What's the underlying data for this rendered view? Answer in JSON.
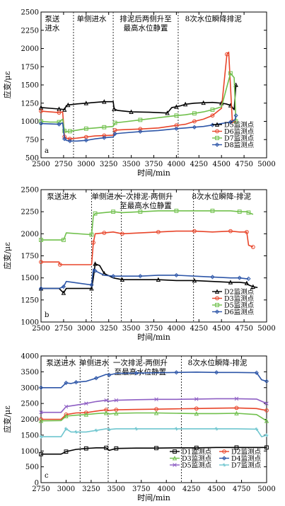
{
  "chart_data": [
    {
      "type": "line",
      "panel": "a",
      "xlabel": "时间/min",
      "ylabel": "应变/με",
      "xlim": [
        2500,
        5000
      ],
      "ylim": [
        500,
        2500
      ],
      "xticks": [
        2500,
        2750,
        3000,
        3250,
        3500,
        3750,
        4000,
        4250,
        4500,
        4750,
        5000
      ],
      "yticks": [
        500,
        750,
        1000,
        1250,
        1500,
        1750,
        2000,
        2250,
        2500
      ],
      "phase_lines": [
        2860,
        3300,
        4020
      ],
      "phases": [
        {
          "lines": [
            "泵送",
            "进水"
          ],
          "x": 2625
        },
        {
          "lines": [
            "单侧进水"
          ],
          "x": 3060
        },
        {
          "lines": [
            "排泥后两侧升至",
            "最高水位静置"
          ],
          "x": 3660
        },
        {
          "lines": [
            "8次水位瞬降排泥"
          ],
          "x": 4410
        }
      ],
      "legend_position": "bottom-right",
      "legend_columns": 1,
      "series": [
        {
          "name": "D5监测点",
          "color": "#000000",
          "marker": "triangle",
          "x": [
            2500,
            2600,
            2700,
            2740,
            2760,
            2780,
            2800,
            2900,
            3000,
            3100,
            3200,
            3300,
            3310,
            3350,
            3500,
            3700,
            3900,
            3950,
            4000,
            4050,
            4100,
            4200,
            4300,
            4400,
            4500,
            4550,
            4600,
            4640,
            4660
          ],
          "y": [
            1190,
            1180,
            1170,
            1165,
            1160,
            1215,
            1225,
            1240,
            1250,
            1260,
            1270,
            1270,
            1170,
            1150,
            1130,
            1125,
            1115,
            1190,
            1200,
            1215,
            1235,
            1250,
            1255,
            1260,
            1250,
            1240,
            1220,
            1160,
            1500
          ]
        },
        {
          "name": "D6监测点",
          "color": "#e8452a",
          "marker": "circle",
          "x": [
            2500,
            2600,
            2700,
            2740,
            2760,
            2780,
            2820,
            2900,
            3000,
            3100,
            3200,
            3300,
            3320,
            3400,
            3600,
            3800,
            4000,
            4100,
            4200,
            4300,
            4400,
            4500,
            4560,
            4580,
            4620,
            4660
          ],
          "y": [
            1140,
            1130,
            1120,
            1130,
            790,
            770,
            760,
            770,
            785,
            800,
            805,
            810,
            880,
            885,
            895,
            910,
            945,
            960,
            1000,
            1030,
            1080,
            1180,
            1920,
            1950,
            1000,
            1000
          ]
        },
        {
          "name": "D7监测点",
          "color": "#70c04c",
          "marker": "square",
          "x": [
            2500,
            2600,
            2700,
            2740,
            2760,
            2780,
            2820,
            2900,
            3000,
            3100,
            3200,
            3300,
            3320,
            3400,
            3600,
            3800,
            4000,
            4100,
            4200,
            4300,
            4400,
            4500,
            4600,
            4640,
            4660
          ],
          "y": [
            1000,
            990,
            990,
            1030,
            870,
            860,
            865,
            880,
            900,
            910,
            920,
            930,
            980,
            990,
            1020,
            1050,
            1080,
            1090,
            1110,
            1130,
            1160,
            1200,
            1660,
            1600,
            1000
          ]
        },
        {
          "name": "D8监测点",
          "color": "#2d56a8",
          "marker": "diamond",
          "x": [
            2500,
            2600,
            2700,
            2740,
            2760,
            2780,
            2820,
            2900,
            3000,
            3100,
            3200,
            3300,
            3320,
            3400,
            3600,
            3800,
            4000,
            4100,
            4200,
            4300,
            4400,
            4500,
            4600,
            4650,
            4660
          ],
          "y": [
            970,
            965,
            960,
            980,
            760,
            740,
            730,
            730,
            740,
            760,
            775,
            785,
            830,
            840,
            860,
            875,
            900,
            910,
            920,
            930,
            950,
            970,
            990,
            1020,
            1080
          ]
        }
      ]
    },
    {
      "type": "line",
      "panel": "b",
      "xlabel": "时间/min",
      "ylabel": "应变/με",
      "xlim": [
        2500,
        5000
      ],
      "ylim": [
        1000,
        2500
      ],
      "xticks": [
        2500,
        2750,
        3000,
        3250,
        3500,
        3750,
        4000,
        4250,
        4500,
        4750,
        5000
      ],
      "yticks": [
        1000,
        1250,
        1500,
        1750,
        2000,
        2250,
        2500
      ],
      "phase_lines": [
        3060,
        3390,
        4190
      ],
      "phases": [
        {
          "lines": [
            "泵送进水"
          ],
          "x": 2730
        },
        {
          "lines": [
            "单侧进水"
          ],
          "x": 3225
        },
        {
          "lines": [
            "一次排泥-两侧升",
            "至最高水位静置"
          ],
          "x": 3660
        },
        {
          "lines": [
            "8次水位瞬降-排泥"
          ],
          "x": 4500
        }
      ],
      "legend_position": "bottom-right",
      "legend_columns": 1,
      "series": [
        {
          "name": "D2监测点",
          "color": "#000000",
          "marker": "triangle",
          "x": [
            2500,
            2700,
            2750,
            2780,
            3060,
            3080,
            3100,
            3150,
            3200,
            3300,
            3400,
            3600,
            3800,
            4000,
            4200,
            4400,
            4600,
            4700,
            4780,
            4800,
            4850,
            4900
          ],
          "y": [
            1380,
            1380,
            1330,
            1380,
            1380,
            1500,
            1660,
            1640,
            1550,
            1500,
            1480,
            1480,
            1480,
            1470,
            1470,
            1460,
            1450,
            1450,
            1440,
            1420,
            1400,
            1390
          ]
        },
        {
          "name": "D3监测点",
          "color": "#e8452a",
          "marker": "circle",
          "x": [
            2500,
            2700,
            2710,
            3060,
            3080,
            3100,
            3200,
            3300,
            3400,
            3600,
            3800,
            4000,
            4200,
            4400,
            4600,
            4700,
            4780,
            4800,
            4850
          ],
          "y": [
            1680,
            1680,
            1650,
            1650,
            1900,
            2000,
            2010,
            2020,
            2000,
            2010,
            2020,
            2030,
            2030,
            2020,
            2030,
            2020,
            2020,
            1870,
            1850
          ]
        },
        {
          "name": "D5监测点",
          "color": "#70c04c",
          "marker": "square",
          "x": [
            2500,
            2700,
            2750,
            2780,
            3060,
            3080,
            3100,
            3200,
            3300,
            3400,
            3600,
            3800,
            4000,
            4200,
            4400,
            4600,
            4700,
            4780,
            4800,
            4850
          ],
          "y": [
            1930,
            1930,
            1930,
            2010,
            1990,
            2200,
            2230,
            2240,
            2250,
            2240,
            2250,
            2260,
            2260,
            2260,
            2260,
            2260,
            2250,
            2250,
            2240,
            2220
          ]
        },
        {
          "name": "D6监测点",
          "color": "#2d56a8",
          "marker": "diamond",
          "x": [
            2500,
            2700,
            2750,
            2780,
            3060,
            3080,
            3100,
            3200,
            3300,
            3400,
            3600,
            3800,
            4000,
            4200,
            4400,
            4600,
            4700,
            4780,
            4800
          ],
          "y": [
            1380,
            1380,
            1400,
            1460,
            1420,
            1600,
            1580,
            1530,
            1520,
            1520,
            1520,
            1530,
            1530,
            1520,
            1510,
            1500,
            1500,
            1490,
            1490
          ]
        }
      ]
    },
    {
      "type": "line",
      "panel": "c",
      "xlabel": "时间/min",
      "ylabel": "应变/με",
      "xlim": [
        2750,
        5000
      ],
      "ylim": [
        0,
        4000
      ],
      "xticks": [
        2750,
        3000,
        3250,
        3500,
        3750,
        4000,
        4250,
        4500,
        4750,
        5000
      ],
      "yticks": [
        0,
        500,
        1000,
        1500,
        2000,
        2500,
        3000,
        3500,
        4000
      ],
      "phase_lines": [
        3140,
        3420,
        4150
      ],
      "phases": [
        {
          "lines": [
            "泵送进水"
          ],
          "x": 2950
        },
        {
          "lines": [
            "单侧进水"
          ],
          "x": 3280
        },
        {
          "lines": [
            "一次排泥-两侧升",
            "至最高水位静置"
          ],
          "x": 3740
        },
        {
          "lines": [
            "8次水位瞬降-排泥"
          ],
          "x": 4510
        }
      ],
      "legend_position": "bottom",
      "legend_columns": 2,
      "series": [
        {
          "name": "D1监测点",
          "color": "#000000",
          "marker": "square",
          "x": [
            2750,
            2950,
            3000,
            3100,
            3200,
            3300,
            3400,
            3430,
            3500,
            3700,
            3900,
            4100,
            4300,
            4500,
            4700,
            4900,
            5000
          ],
          "y": [
            900,
            900,
            980,
            1050,
            1080,
            1100,
            1100,
            1020,
            1080,
            1090,
            1090,
            1100,
            1100,
            1110,
            1110,
            1110,
            1110
          ]
        },
        {
          "name": "D2监测点",
          "color": "#e8452a",
          "marker": "circle",
          "x": [
            2750,
            2950,
            3000,
            3100,
            3200,
            3300,
            3400,
            3430,
            3500,
            3700,
            3900,
            4100,
            4300,
            4500,
            4700,
            4900,
            5000
          ],
          "y": [
            2000,
            2000,
            2150,
            2200,
            2210,
            2260,
            2300,
            2280,
            2300,
            2310,
            2320,
            2330,
            2340,
            2350,
            2360,
            2340,
            2280
          ]
        },
        {
          "name": "D3监测点",
          "color": "#70c04c",
          "marker": "triangle",
          "x": [
            2750,
            2950,
            3000,
            3100,
            3200,
            3300,
            3400,
            3430,
            3500,
            3700,
            3900,
            4100,
            4300,
            4500,
            4700,
            4900,
            5000
          ],
          "y": [
            1950,
            1960,
            2100,
            2130,
            2150,
            2180,
            2200,
            2170,
            2190,
            2200,
            2200,
            2190,
            2180,
            2180,
            2190,
            2150,
            1950
          ]
        },
        {
          "name": "D4监测点",
          "color": "#2d56a8",
          "marker": "diamond",
          "x": [
            2750,
            2950,
            3000,
            3050,
            3100,
            3200,
            3300,
            3400,
            3430,
            3500,
            3700,
            3900,
            4100,
            4300,
            4500,
            4700,
            4900,
            4950,
            5000
          ],
          "y": [
            3000,
            3000,
            3150,
            3130,
            3170,
            3200,
            3300,
            3420,
            3400,
            3450,
            3460,
            3470,
            3480,
            3490,
            3480,
            3480,
            3470,
            3250,
            3200
          ]
        },
        {
          "name": "D5监测点",
          "color": "#8e5fc4",
          "marker": "x",
          "x": [
            2750,
            2950,
            3000,
            3100,
            3200,
            3300,
            3400,
            3430,
            3500,
            3700,
            3900,
            4100,
            4300,
            4500,
            4700,
            4900,
            5000
          ],
          "y": [
            2220,
            2220,
            2400,
            2450,
            2500,
            2560,
            2600,
            2570,
            2600,
            2620,
            2630,
            2630,
            2640,
            2650,
            2650,
            2640,
            2500
          ]
        },
        {
          "name": "D7监测点",
          "color": "#6fc6cf",
          "marker": "star",
          "x": [
            2750,
            2950,
            3000,
            3050,
            3100,
            3200,
            3300,
            3400,
            3430,
            3500,
            3700,
            3900,
            4100,
            4300,
            4500,
            4700,
            4900,
            4950,
            5000
          ],
          "y": [
            1450,
            1450,
            1700,
            1600,
            1600,
            1600,
            1650,
            1700,
            1680,
            1700,
            1700,
            1700,
            1700,
            1700,
            1700,
            1700,
            1690,
            1450,
            1500
          ]
        }
      ]
    }
  ]
}
